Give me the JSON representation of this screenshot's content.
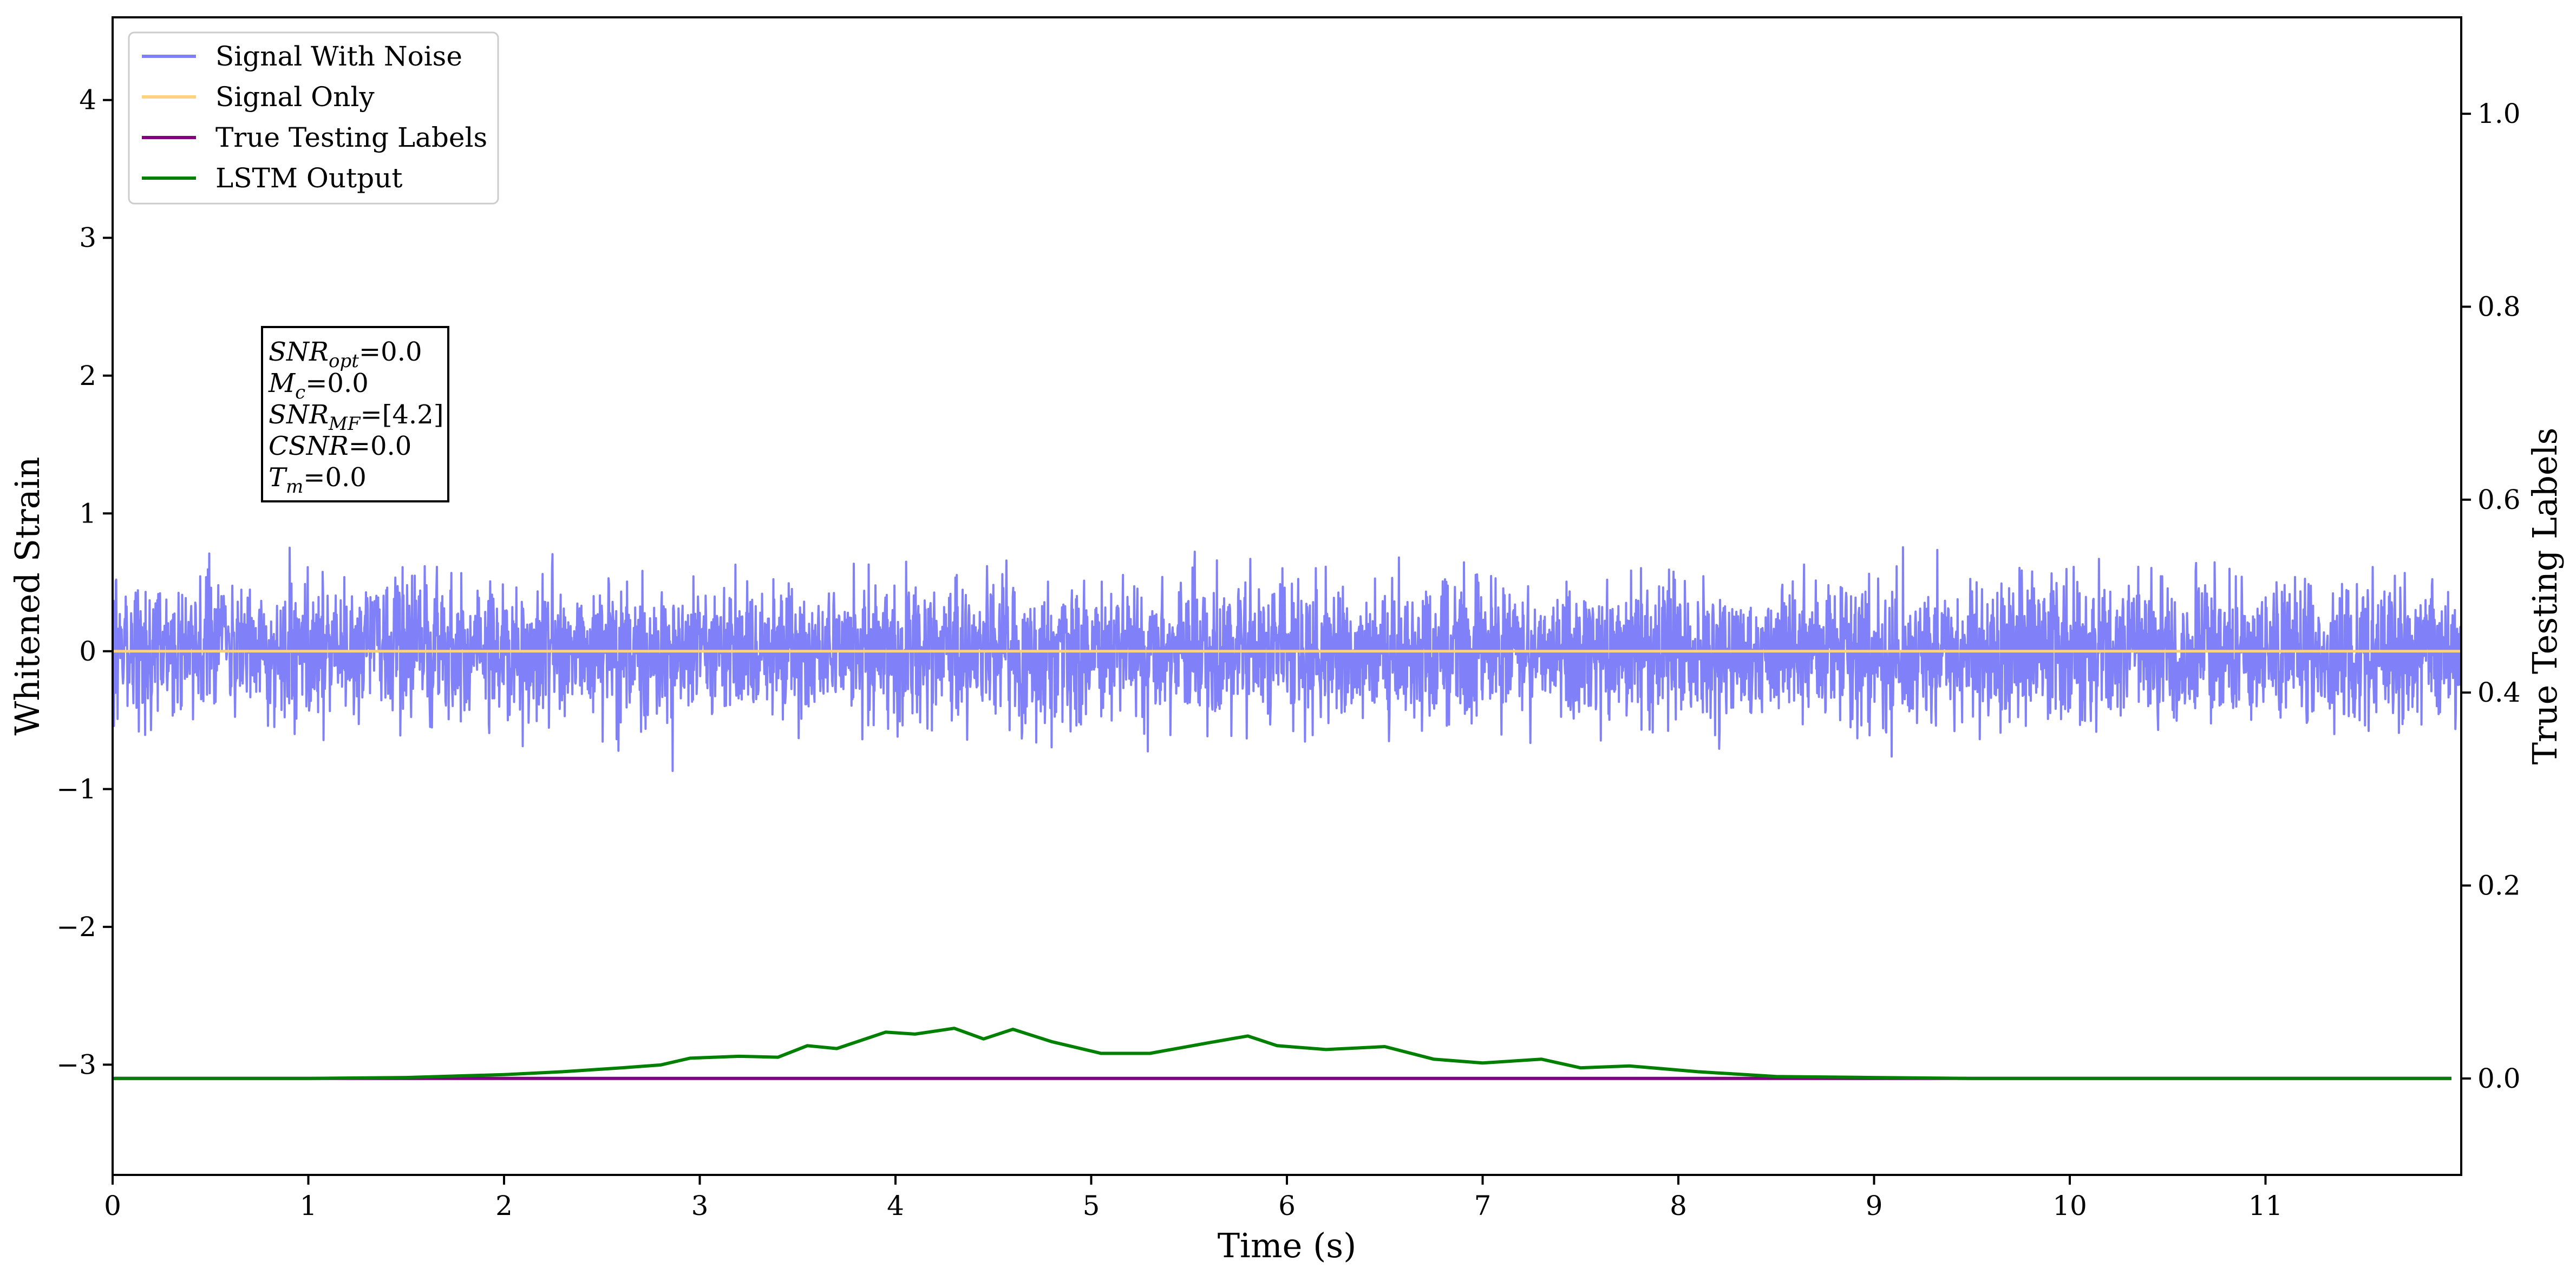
{
  "chart_data": {
    "type": "line",
    "xlabel": "Time (s)",
    "ylabel": "Whitened Strain",
    "y2label": "True Testing Labels",
    "xlim": [
      0,
      12
    ],
    "ylim": [
      -3.8,
      4.6
    ],
    "y2lim": [
      -0.1,
      1.1
    ],
    "x_ticks": [
      "0",
      "1",
      "2",
      "3",
      "4",
      "5",
      "6",
      "7",
      "8",
      "9",
      "10",
      "11"
    ],
    "y_ticks": [
      {
        "v": 4,
        "label": "4"
      },
      {
        "v": 3,
        "label": "3"
      },
      {
        "v": 2,
        "label": "2"
      },
      {
        "v": 1,
        "label": "1"
      },
      {
        "v": 0,
        "label": "0"
      },
      {
        "v": -1,
        "label": "−1"
      },
      {
        "v": -2,
        "label": "−2"
      },
      {
        "v": -3,
        "label": "−3"
      }
    ],
    "y2_ticks": [
      "0.0",
      "0.2",
      "0.4",
      "0.6",
      "0.8",
      "1.0"
    ],
    "legend": {
      "placement": "top-left",
      "entries": [
        {
          "label": "Signal With Noise",
          "color": "#8080f8"
        },
        {
          "label": "Signal Only",
          "color": "#ffd27f"
        },
        {
          "label": "True Testing Labels",
          "color": "#800080"
        },
        {
          "label": "LSTM Output",
          "color": "#008000"
        }
      ]
    },
    "annotation": [
      {
        "sym": "SNR",
        "sub": "opt",
        "val": "=0.0"
      },
      {
        "sym": "M",
        "sub": "c",
        "val": "=0.0"
      },
      {
        "sym": "SNR",
        "sub": "MF",
        "val": "=[4.2]"
      },
      {
        "sym": "CSNR",
        "sub": "",
        "val": "=0.0"
      },
      {
        "sym": "T",
        "sub": "m",
        "val": "=0.0"
      }
    ],
    "series": [
      {
        "name": "Signal With Noise",
        "axis": "left",
        "color": "#8080f8",
        "style": "noise",
        "summary": {
          "x_start": 0,
          "x_end": 12,
          "mean": 0,
          "typical_abs": 0.45,
          "max": 1.1,
          "min": -1.03
        }
      },
      {
        "name": "Signal Only",
        "axis": "left",
        "color": "#ffd27f",
        "x": [
          0,
          12
        ],
        "y": [
          0,
          0
        ]
      },
      {
        "name": "True Testing Labels",
        "axis": "right",
        "color": "#800080",
        "x": [
          0,
          11.95
        ],
        "y": [
          0,
          0
        ]
      },
      {
        "name": "LSTM Output",
        "axis": "right",
        "color": "#008000",
        "x": [
          0,
          1,
          1.5,
          2,
          2.3,
          2.6,
          2.8,
          2.95,
          3.2,
          3.4,
          3.55,
          3.7,
          3.95,
          4.1,
          4.3,
          4.45,
          4.6,
          4.8,
          5.05,
          5.3,
          5.6,
          5.8,
          5.95,
          6.2,
          6.5,
          6.75,
          7.0,
          7.3,
          7.5,
          7.75,
          8.1,
          8.5,
          9.0,
          9.5,
          10.5,
          11.95
        ],
        "y": [
          0.0,
          0.0,
          0.001,
          0.004,
          0.007,
          0.011,
          0.014,
          0.021,
          0.023,
          0.022,
          0.034,
          0.031,
          0.048,
          0.046,
          0.052,
          0.041,
          0.051,
          0.038,
          0.026,
          0.026,
          0.037,
          0.044,
          0.034,
          0.03,
          0.033,
          0.02,
          0.016,
          0.02,
          0.011,
          0.013,
          0.007,
          0.002,
          0.001,
          0.0,
          0.0,
          0.0
        ]
      }
    ]
  }
}
